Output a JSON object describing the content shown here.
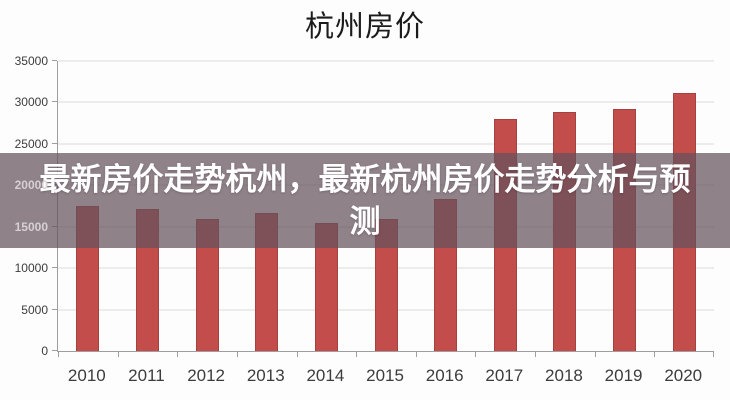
{
  "page": {
    "background": "#fdfdfd"
  },
  "chart": {
    "title": "杭州房价"
  },
  "overlay_banner": {
    "line1": "最新房价走势杭州，最新杭州房价走势分析与预",
    "line2": "测",
    "background": "rgba(100,82,92,0.72)",
    "text_color": "#ffffff"
  },
  "chart_data": {
    "type": "bar",
    "title": "杭州房价",
    "categories": [
      "2010",
      "2011",
      "2012",
      "2013",
      "2014",
      "2015",
      "2016",
      "2017",
      "2018",
      "2019",
      "2020"
    ],
    "values": [
      17500,
      17200,
      15900,
      16700,
      15400,
      15900,
      18300,
      28000,
      28900,
      29200,
      31200
    ],
    "xlabel": "",
    "ylabel": "",
    "ylim": [
      0,
      35000
    ],
    "ytick_step": 5000,
    "grid": true,
    "legend_position": "none",
    "bar_color": "#c34d4b",
    "bar_border_color": "#a5423f",
    "gridline_color": "#dadada",
    "axis_color": "#9e9e9e",
    "tick_label_color": "#3c3c3c",
    "tick_label_color_in_banner": "#d6d0d4"
  }
}
